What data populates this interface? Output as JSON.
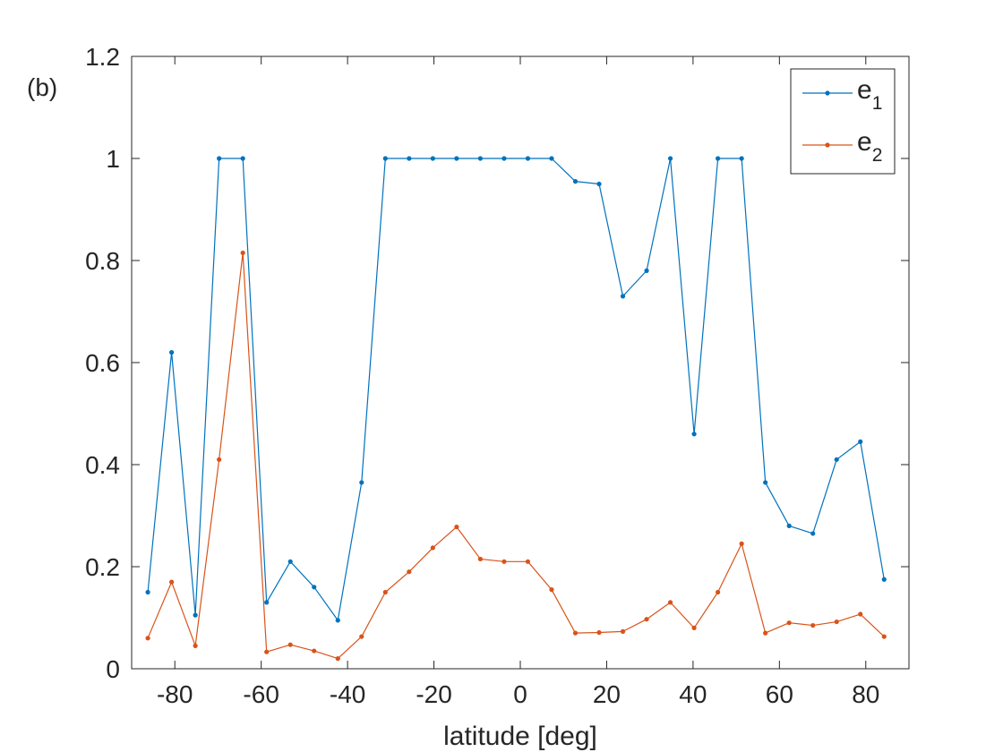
{
  "chart_data": {
    "type": "line",
    "panel_label": "(b)",
    "title": "",
    "xlabel": "latitude [deg]",
    "ylabel": "",
    "xlim": [
      -90,
      90
    ],
    "ylim": [
      0,
      1.2
    ],
    "xticks": [
      -80,
      -60,
      -40,
      -20,
      0,
      20,
      40,
      60,
      80
    ],
    "xtick_labels": [
      "-80",
      "-60",
      "-40",
      "-20",
      "0",
      "20",
      "40",
      "60",
      "80"
    ],
    "yticks": [
      0,
      0.2,
      0.4,
      0.6,
      0.8,
      1,
      1.2
    ],
    "ytick_labels": [
      "0",
      "0.2",
      "0.4",
      "0.6",
      "0.8",
      "1",
      "1.2"
    ],
    "grid": false,
    "legend_position": "top-right",
    "x": [
      -86.25,
      -80.75,
      -75.25,
      -69.75,
      -64.25,
      -58.75,
      -53.25,
      -47.75,
      -42.25,
      -36.75,
      -31.25,
      -25.75,
      -20.25,
      -14.75,
      -9.25,
      -3.75,
      1.75,
      7.25,
      12.75,
      18.25,
      23.75,
      29.25,
      34.75,
      40.25,
      45.75,
      51.25,
      56.75,
      62.25,
      67.75,
      73.25,
      78.75,
      84.25
    ],
    "series": [
      {
        "name_base": "e",
        "name_sub": "1",
        "color": "#0072BD",
        "values": [
          0.15,
          0.62,
          0.105,
          1.0,
          1.0,
          0.13,
          0.21,
          0.16,
          0.095,
          0.365,
          1.0,
          1.0,
          1.0,
          1.0,
          1.0,
          1.0,
          1.0,
          1.0,
          0.955,
          0.95,
          0.73,
          0.78,
          1.0,
          0.46,
          1.0,
          1.0,
          0.365,
          0.28,
          0.265,
          0.41,
          0.445,
          0.175
        ]
      },
      {
        "name_base": "e",
        "name_sub": "2",
        "color": "#D95319",
        "values": [
          0.06,
          0.17,
          0.045,
          0.41,
          0.815,
          0.033,
          0.047,
          0.035,
          0.02,
          0.063,
          0.15,
          0.19,
          0.237,
          0.278,
          0.215,
          0.21,
          0.21,
          0.155,
          0.07,
          0.071,
          0.073,
          0.097,
          0.13,
          0.08,
          0.15,
          0.245,
          0.07,
          0.09,
          0.085,
          0.092,
          0.107,
          0.063
        ]
      }
    ]
  }
}
